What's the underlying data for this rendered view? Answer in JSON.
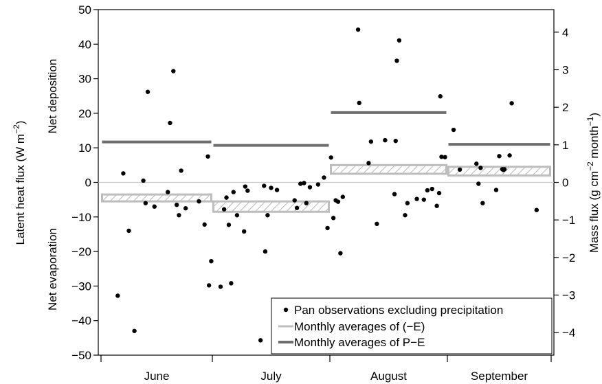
{
  "chart_data": {
    "type": "scatter",
    "categories": [
      "June",
      "July",
      "August",
      "September"
    ],
    "ylabel_left": "Latent heat flux (W m",
    "ylabel_left_sup": "−2",
    "ylabel_left_end": ")",
    "ylabel_right": "Mass flux (g cm",
    "ylabel_right_sup1": "−2",
    "ylabel_right_mid": " month",
    "ylabel_right_sup2": "−1",
    "ylabel_right_end": ")",
    "annotations": {
      "top": "Net deposition",
      "bottom": "Net evaporation"
    },
    "ylim_left": [
      -50,
      50
    ],
    "yticks_left": [
      -50,
      -40,
      -30,
      -20,
      -10,
      0,
      10,
      20,
      30,
      40,
      50
    ],
    "ylim_right": [
      -4.6,
      4.6
    ],
    "yticks_right": [
      -4,
      -3,
      -2,
      -1,
      0,
      1,
      2,
      3,
      4
    ],
    "legend": {
      "placement": "bottom-right",
      "entries": [
        "Pan observations excluding precipitation",
        "Monthly averages of (−E)",
        "Monthly averages of P−E"
      ]
    },
    "colors": {
      "points": "#000000",
      "minus_e": "#bdbdbd",
      "p_minus_e": "#6e6e6e",
      "hatch": "#a0a0a0",
      "zero_line": "#c8c8c8"
    },
    "months": [
      {
        "name": "June",
        "p_minus_e": 11.7,
        "minus_e_band": [
          -3.5,
          -5.5
        ],
        "points": [
          [
            0.15,
            -32.8
          ],
          [
            0.2,
            2.6
          ],
          [
            0.25,
            -14
          ],
          [
            0.3,
            -43
          ],
          [
            0.38,
            0.5
          ],
          [
            0.4,
            -6
          ],
          [
            0.42,
            26.2
          ],
          [
            0.48,
            -7
          ],
          [
            0.6,
            -2.8
          ],
          [
            0.62,
            17.2
          ],
          [
            0.65,
            32.2
          ],
          [
            0.68,
            -6.5
          ],
          [
            0.7,
            -9.5
          ],
          [
            0.72,
            3.4
          ],
          [
            0.76,
            -7.5
          ],
          [
            0.88,
            -5.5
          ],
          [
            0.93,
            -12.2
          ],
          [
            0.96,
            7.5
          ],
          [
            0.97,
            -29.8
          ],
          [
            0.99,
            -22.8
          ]
        ]
      },
      {
        "name": "July",
        "p_minus_e": 10.7,
        "minus_e_band": [
          -5.5,
          -8.5
        ],
        "points": [
          [
            0.07,
            -30.2
          ],
          [
            0.1,
            -7.8
          ],
          [
            0.12,
            -4.4
          ],
          [
            0.14,
            -12.3
          ],
          [
            0.16,
            -29.2
          ],
          [
            0.18,
            -2.8
          ],
          [
            0.21,
            -9.5
          ],
          [
            0.27,
            -14.2
          ],
          [
            0.28,
            -1.2
          ],
          [
            0.3,
            -2.4
          ],
          [
            0.41,
            -45.7
          ],
          [
            0.44,
            -1
          ],
          [
            0.45,
            -20
          ],
          [
            0.47,
            -9.5
          ],
          [
            0.5,
            -1.6
          ],
          [
            0.55,
            -2.2
          ],
          [
            0.7,
            -5.2
          ],
          [
            0.72,
            -7.4
          ],
          [
            0.75,
            -0.4
          ],
          [
            0.78,
            -0.2
          ],
          [
            0.8,
            -6
          ],
          [
            0.83,
            -1.4
          ],
          [
            0.9,
            -0.6
          ],
          [
            0.95,
            1.4
          ],
          [
            0.98,
            -13.2
          ]
        ]
      },
      {
        "name": "August",
        "p_minus_e": 20.2,
        "minus_e_band": [
          5,
          2.5
        ],
        "points": [
          [
            0.01,
            7.2
          ],
          [
            0.03,
            -10.3
          ],
          [
            0.05,
            -5.2
          ],
          [
            0.07,
            -5.6
          ],
          [
            0.09,
            -20.5
          ],
          [
            0.11,
            -4.2
          ],
          [
            0.24,
            44.2
          ],
          [
            0.25,
            23
          ],
          [
            0.33,
            5.6
          ],
          [
            0.35,
            11.8
          ],
          [
            0.4,
            -12
          ],
          [
            0.47,
            12.2
          ],
          [
            0.55,
            -3.4
          ],
          [
            0.56,
            12
          ],
          [
            0.57,
            35.2
          ],
          [
            0.59,
            41.1
          ],
          [
            0.64,
            -9.5
          ],
          [
            0.66,
            -6
          ],
          [
            0.74,
            -4.8
          ],
          [
            0.8,
            -5
          ],
          [
            0.83,
            -2.3
          ],
          [
            0.87,
            -1.9
          ],
          [
            0.91,
            -6.8
          ],
          [
            0.93,
            -3.1
          ],
          [
            0.95,
            7.4
          ],
          [
            0.98,
            7.3
          ],
          [
            0.94,
            24.9
          ]
        ]
      },
      {
        "name": "September",
        "p_minus_e": 11,
        "minus_e_band": [
          4.5,
          2
        ],
        "points": [
          [
            0.06,
            15.2
          ],
          [
            0.12,
            3.7
          ],
          [
            0.28,
            5.4
          ],
          [
            0.3,
            -0.4
          ],
          [
            0.32,
            4.2
          ],
          [
            0.34,
            -6
          ],
          [
            0.47,
            -2.2
          ],
          [
            0.5,
            7.6
          ],
          [
            0.53,
            3.8
          ],
          [
            0.54,
            3.6
          ],
          [
            0.55,
            3.8
          ],
          [
            0.6,
            7.8
          ],
          [
            0.62,
            22.9
          ],
          [
            0.86,
            -8
          ]
        ]
      }
    ]
  }
}
